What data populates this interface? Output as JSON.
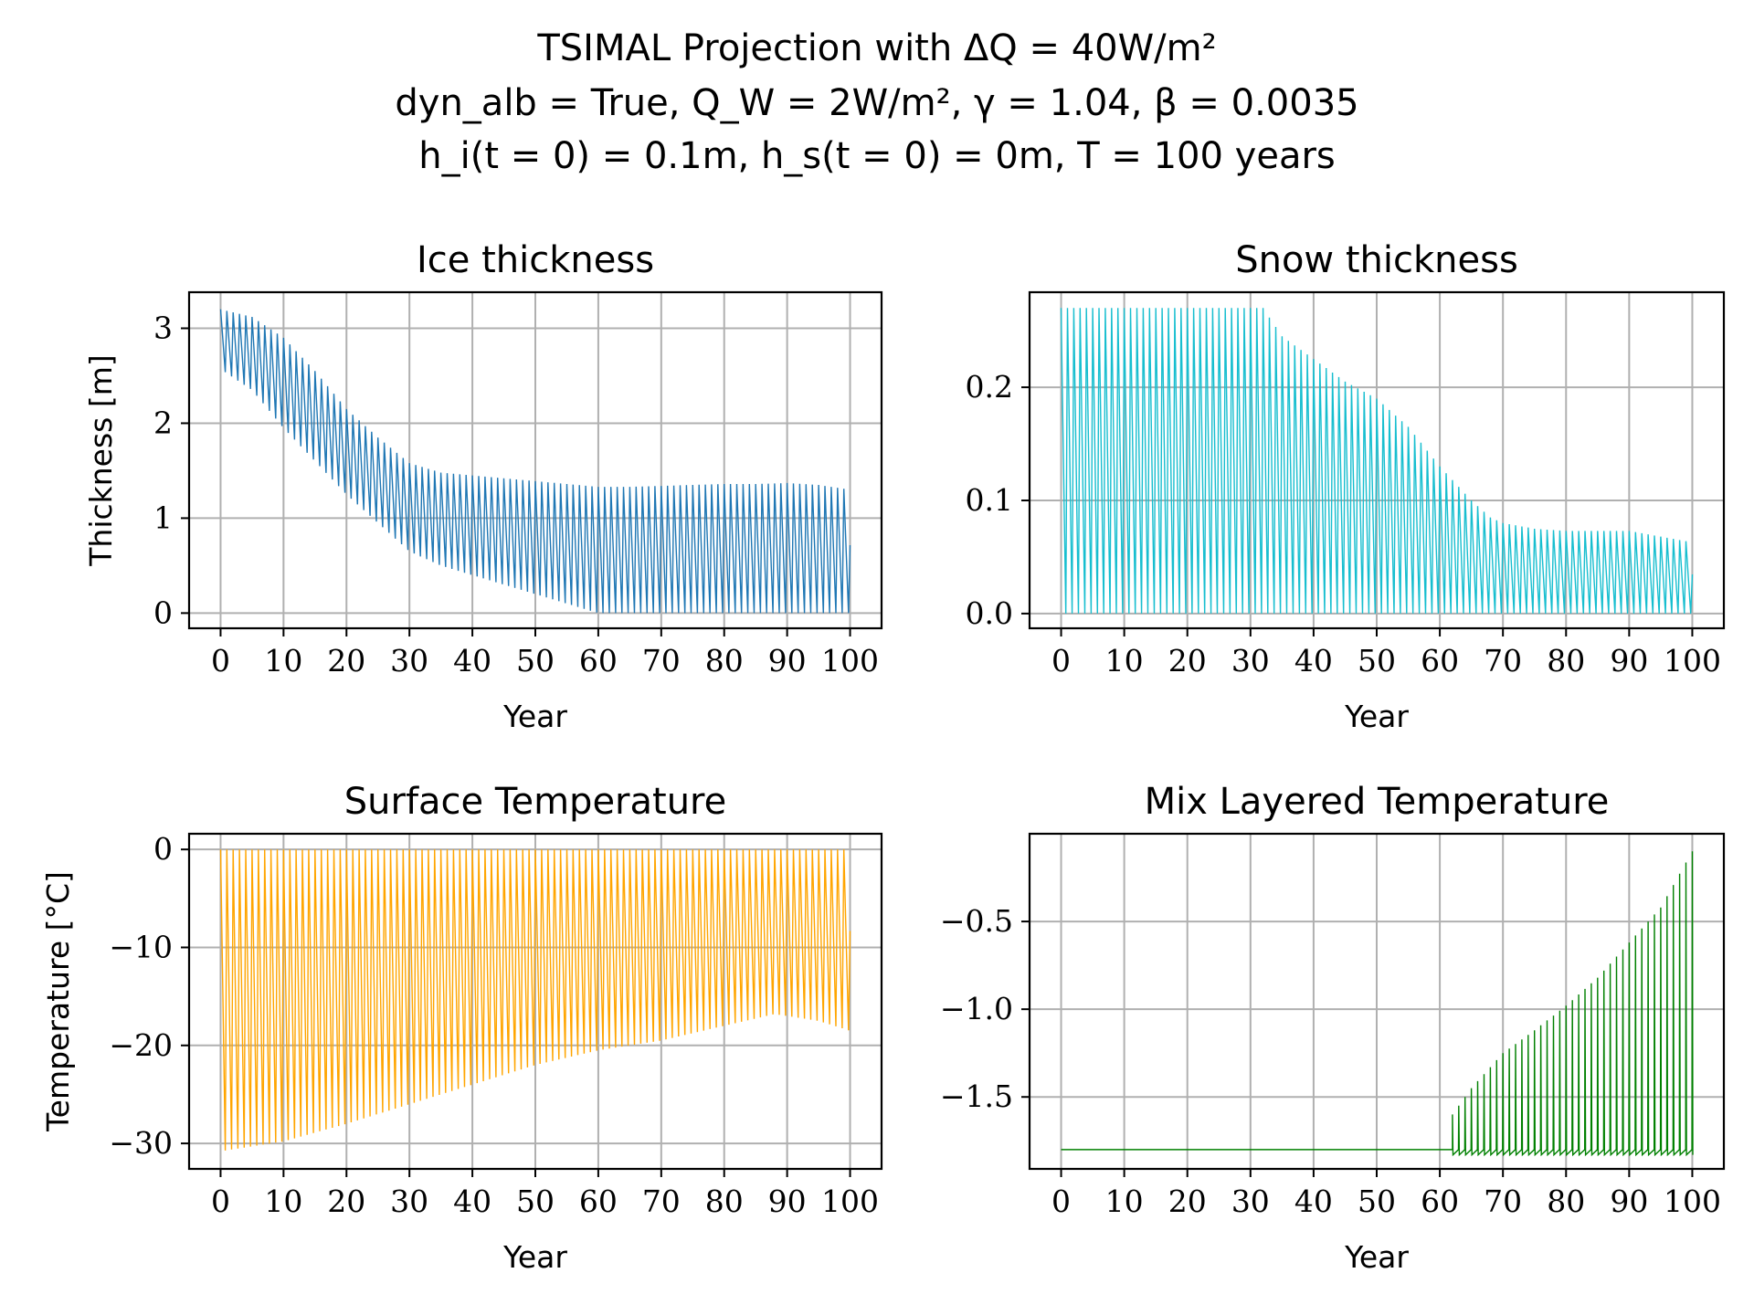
{
  "figure": {
    "title_lines": [
      "TSIMAL Projection with ΔQ = 40W/m²",
      "dyn_alb = True, Q_W = 2W/m², γ = 1.04, β = 0.0035",
      "h_i(t = 0) = 0.1m, h_s(t = 0) = 0m, T = 100 years"
    ]
  },
  "chart_data": [
    {
      "type": "line",
      "title": "Ice thickness",
      "xlabel": "Year",
      "ylabel": "Thickness [m]",
      "color": "#1f77b4",
      "xlim": [
        -5,
        105
      ],
      "ylim": [
        -0.16,
        3.38
      ],
      "xticks": [
        0,
        10,
        20,
        30,
        40,
        50,
        60,
        70,
        80,
        90,
        100
      ],
      "yticks": [
        0,
        1,
        2,
        3
      ],
      "ytick_labels": [
        "0",
        "1",
        "2",
        "3"
      ],
      "grid": true,
      "series": [
        {
          "x": [
            0,
            5,
            10,
            15,
            20,
            25,
            30,
            35,
            40,
            45,
            50,
            55,
            60,
            65,
            70,
            75,
            80,
            85,
            90,
            95,
            100
          ],
          "upper": [
            3.2,
            3.12,
            2.9,
            2.55,
            2.15,
            1.85,
            1.58,
            1.48,
            1.45,
            1.42,
            1.39,
            1.36,
            1.33,
            1.33,
            1.34,
            1.35,
            1.36,
            1.36,
            1.37,
            1.35,
            1.3
          ],
          "lower": [
            2.57,
            2.35,
            1.95,
            1.6,
            1.25,
            0.95,
            0.65,
            0.5,
            0.4,
            0.3,
            0.2,
            0.1,
            0.0,
            0.0,
            0.0,
            0.0,
            0.0,
            0.0,
            0.0,
            0.0,
            0.0
          ]
        }
      ]
    },
    {
      "type": "line",
      "title": "Snow thickness",
      "xlabel": "Year",
      "ylabel": "",
      "color": "#17becf",
      "xlim": [
        -5,
        105
      ],
      "ylim": [
        -0.013,
        0.284
      ],
      "xticks": [
        0,
        10,
        20,
        30,
        40,
        50,
        60,
        70,
        80,
        90,
        100
      ],
      "yticks": [
        0.0,
        0.1,
        0.2
      ],
      "ytick_labels": [
        "0.0",
        "0.1",
        "0.2"
      ],
      "grid": true,
      "series": [
        {
          "x": [
            0,
            5,
            10,
            15,
            20,
            25,
            30,
            32,
            35,
            40,
            45,
            50,
            55,
            60,
            65,
            68,
            70,
            75,
            80,
            85,
            90,
            95,
            100
          ],
          "upper": [
            0.27,
            0.27,
            0.27,
            0.27,
            0.27,
            0.27,
            0.27,
            0.27,
            0.245,
            0.225,
            0.205,
            0.19,
            0.165,
            0.13,
            0.1,
            0.085,
            0.08,
            0.075,
            0.073,
            0.073,
            0.073,
            0.068,
            0.063
          ],
          "lower": [
            0,
            0,
            0,
            0,
            0,
            0,
            0,
            0,
            0,
            0,
            0,
            0,
            0,
            0,
            0,
            0,
            0,
            0,
            0,
            0,
            0,
            0,
            0
          ]
        }
      ]
    },
    {
      "type": "line",
      "title": "Surface Temperature",
      "xlabel": "Year",
      "ylabel": "Temperature [°C]",
      "color": "#ffa500",
      "xlim": [
        -5,
        105
      ],
      "ylim": [
        -32.6,
        1.6
      ],
      "xticks": [
        0,
        10,
        20,
        30,
        40,
        50,
        60,
        70,
        80,
        90,
        100
      ],
      "yticks": [
        0,
        -10,
        -20,
        -30
      ],
      "ytick_labels": [
        "0",
        "−10",
        "−20",
        "−30"
      ],
      "grid": true,
      "series": [
        {
          "x": [
            0,
            10,
            20,
            30,
            40,
            50,
            60,
            70,
            80,
            88,
            95,
            100
          ],
          "upper": [
            0,
            0,
            0,
            0,
            0,
            0,
            0,
            0,
            0,
            0,
            0,
            0
          ],
          "lower": [
            -30.8,
            -29.8,
            -28,
            -26,
            -24,
            -22,
            -20.5,
            -19.5,
            -18,
            -16.8,
            -17.5,
            -18.5
          ]
        }
      ]
    },
    {
      "type": "line",
      "title": "Mix Layered Temperature",
      "xlabel": "Year",
      "ylabel": "",
      "color": "#008000",
      "xlim": [
        -5,
        105
      ],
      "ylim": [
        -1.91,
        0.0
      ],
      "xticks": [
        0,
        10,
        20,
        30,
        40,
        50,
        60,
        70,
        80,
        90,
        100
      ],
      "yticks": [
        -0.5,
        -1.0,
        -1.5
      ],
      "ytick_labels": [
        "−0.5",
        "−1.0",
        "−1.5"
      ],
      "grid": true,
      "series": [
        {
          "baseline": -1.8,
          "x": [
            62,
            65,
            70,
            75,
            80,
            85,
            90,
            95,
            100
          ],
          "peaks": [
            -1.6,
            -1.45,
            -1.25,
            -1.12,
            -0.98,
            -0.82,
            -0.62,
            -0.42,
            -0.1
          ]
        }
      ]
    }
  ]
}
